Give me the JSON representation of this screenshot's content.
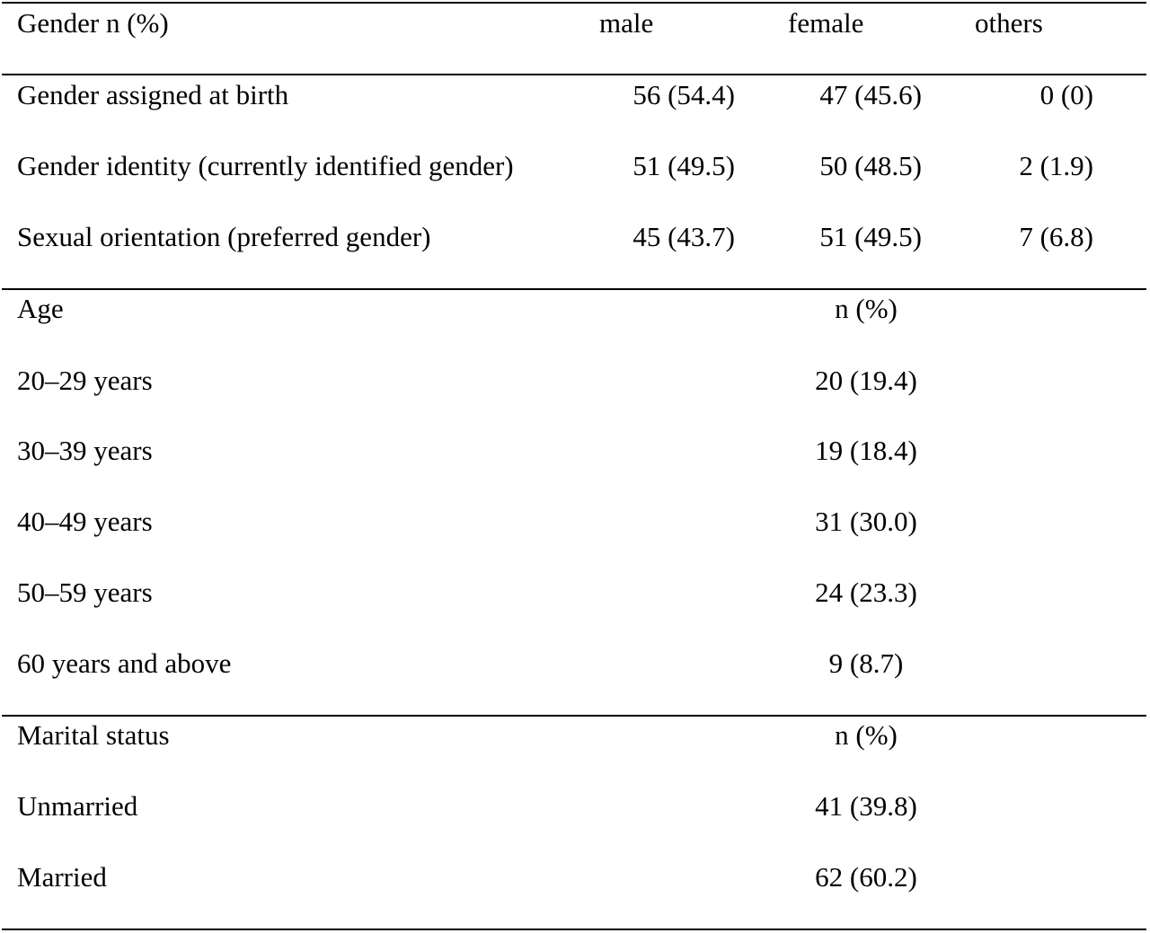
{
  "gender_section": {
    "header": {
      "label": "Gender n (%)",
      "col_male": "male",
      "col_female": "female",
      "col_others": "others"
    },
    "rows": [
      {
        "label": "Gender assigned at birth",
        "male": "56 (54.4)",
        "female": "47 (45.6)",
        "others": "0 (0)"
      },
      {
        "label": "Gender identity (currently identified gender)",
        "male": "51 (49.5)",
        "female": "50 (48.5)",
        "others": "2 (1.9)"
      },
      {
        "label": "Sexual orientation (preferred gender)",
        "male": "45 (43.7)",
        "female": "51 (49.5)",
        "others": "7 (6.8)"
      }
    ]
  },
  "age_section": {
    "header": {
      "label": "Age",
      "col": "n (%)"
    },
    "rows": [
      {
        "label": "20–29 years",
        "value": "20 (19.4)"
      },
      {
        "label": "30–39 years",
        "value": "19 (18.4)"
      },
      {
        "label": "40–49 years",
        "value": "31 (30.0)"
      },
      {
        "label": "50–59 years",
        "value": "24 (23.3)"
      },
      {
        "label": "60 years and above",
        "value": "9 (8.7)"
      }
    ]
  },
  "marital_section": {
    "header": {
      "label": "Marital status",
      "col": "n (%)"
    },
    "rows": [
      {
        "label": "Unmarried",
        "value": "41 (39.8)"
      },
      {
        "label": "Married",
        "value": "62 (60.2)"
      }
    ]
  }
}
